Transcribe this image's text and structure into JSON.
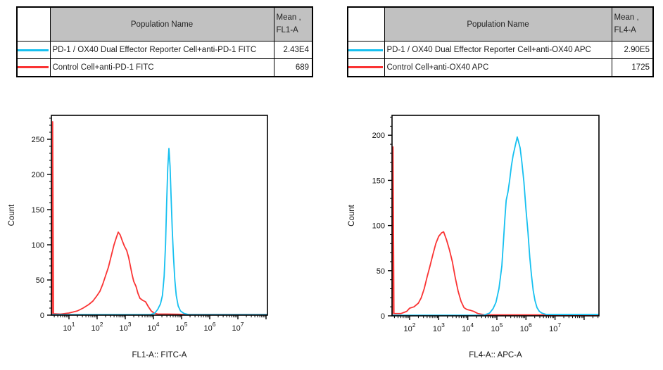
{
  "colors": {
    "cyan_series": "#16C0F0",
    "red_series": "#FA3434",
    "table_header_bg": "#C1C1C1",
    "axis_color": "#000000"
  },
  "tables": [
    {
      "id": "fl1",
      "header": {
        "population": "Population Name",
        "mean_line1": "Mean ,",
        "mean_line2": "FL1-A"
      },
      "rows": [
        {
          "color": "#16C0F0",
          "name": "PD-1 / OX40 Dual Effector Reporter Cell+anti-PD-1 FITC",
          "mean": "2.43E4"
        },
        {
          "color": "#FA3434",
          "name": "Control Cell+anti-PD-1 FITC",
          "mean": "689"
        }
      ]
    },
    {
      "id": "fl4",
      "header": {
        "population": "Population Name",
        "mean_line1": "Mean ,",
        "mean_line2": "FL4-A"
      },
      "rows": [
        {
          "color": "#16C0F0",
          "name": "PD-1 / OX40 Dual Effector Reporter Cell+anti-OX40 APC",
          "mean": "2.90E5"
        },
        {
          "color": "#FA3434",
          "name": "Control Cell+anti-OX40 APC",
          "mean": "1725"
        }
      ]
    }
  ],
  "chart_data": [
    {
      "type": "line",
      "id": "fl1",
      "title": "",
      "xlabel": "FL1-A:: FITC-A",
      "ylabel": "Count",
      "x_scale": "log",
      "xtick_base": "10",
      "xtick_decades": [
        1,
        2,
        3,
        4,
        5,
        6,
        7
      ],
      "xlim_log": [
        0.375,
        8.05
      ],
      "ylim": [
        0,
        284
      ],
      "yticks": [
        0,
        50,
        100,
        150,
        200,
        250
      ],
      "y_major_step": 50,
      "y_minor_step": 10,
      "grid": false,
      "legend_position": "none",
      "series": [
        {
          "name": "Control Cell+anti-PD-1 FITC",
          "color": "#FA3434",
          "points": [
            [
              0.4,
              1
            ],
            [
              0.42,
              275
            ],
            [
              0.45,
              2
            ],
            [
              0.7,
              1.5
            ],
            [
              1.0,
              3
            ],
            [
              1.3,
              6
            ],
            [
              1.5,
              10
            ],
            [
              1.7,
              15
            ],
            [
              1.85,
              20
            ],
            [
              2.0,
              28
            ],
            [
              2.1,
              34
            ],
            [
              2.2,
              44
            ],
            [
              2.3,
              56
            ],
            [
              2.4,
              68
            ],
            [
              2.5,
              84
            ],
            [
              2.6,
              100
            ],
            [
              2.68,
              110
            ],
            [
              2.75,
              118
            ],
            [
              2.82,
              114
            ],
            [
              2.9,
              105
            ],
            [
              2.97,
              98
            ],
            [
              3.05,
              92
            ],
            [
              3.12,
              82
            ],
            [
              3.18,
              70
            ],
            [
              3.24,
              58
            ],
            [
              3.3,
              48
            ],
            [
              3.38,
              41
            ],
            [
              3.45,
              31
            ],
            [
              3.52,
              24
            ],
            [
              3.62,
              21
            ],
            [
              3.72,
              19
            ],
            [
              3.82,
              12
            ],
            [
              3.92,
              6
            ],
            [
              4.02,
              3
            ],
            [
              4.15,
              1.5
            ],
            [
              4.5,
              1.5
            ],
            [
              4.9,
              1.2
            ],
            [
              5.1,
              0.8
            ],
            [
              8.05,
              0.8
            ]
          ]
        },
        {
          "name": "PD-1 / OX40 Dual Effector Reporter Cell+anti-PD-1 FITC",
          "color": "#16C0F0",
          "points": [
            [
              0.375,
              0.7
            ],
            [
              3.9,
              0.7
            ],
            [
              4.05,
              3
            ],
            [
              4.15,
              8
            ],
            [
              4.25,
              16
            ],
            [
              4.32,
              28
            ],
            [
              4.38,
              55
            ],
            [
              4.43,
              100
            ],
            [
              4.47,
              160
            ],
            [
              4.51,
              210
            ],
            [
              4.55,
              237
            ],
            [
              4.59,
              212
            ],
            [
              4.63,
              165
            ],
            [
              4.67,
              120
            ],
            [
              4.71,
              85
            ],
            [
              4.76,
              50
            ],
            [
              4.81,
              28
            ],
            [
              4.88,
              13
            ],
            [
              4.96,
              6
            ],
            [
              5.08,
              2.5
            ],
            [
              5.25,
              0.7
            ],
            [
              8.05,
              0.7
            ]
          ]
        }
      ]
    },
    {
      "type": "line",
      "id": "fl4",
      "title": "",
      "xlabel": "FL4-A:: APC-A",
      "ylabel": "Count",
      "x_scale": "log",
      "xtick_base": "10",
      "xtick_decades": [
        2,
        3,
        4,
        5,
        6,
        7
      ],
      "xlim_log": [
        1.395,
        8.51
      ],
      "ylim": [
        0,
        222
      ],
      "yticks": [
        0,
        50,
        100,
        150,
        200
      ],
      "y_major_step": 50,
      "y_minor_step": 10,
      "grid": false,
      "legend_position": "none",
      "series": [
        {
          "name": "Control Cell+anti-OX40 APC",
          "color": "#FA3434",
          "points": [
            [
              1.41,
              1
            ],
            [
              1.43,
              187
            ],
            [
              1.46,
              2.5
            ],
            [
              1.7,
              2.5
            ],
            [
              1.9,
              5
            ],
            [
              2.0,
              8.5
            ],
            [
              2.15,
              10
            ],
            [
              2.3,
              14
            ],
            [
              2.4,
              20
            ],
            [
              2.5,
              30
            ],
            [
              2.6,
              43
            ],
            [
              2.7,
              55
            ],
            [
              2.8,
              68
            ],
            [
              2.9,
              80
            ],
            [
              3.0,
              88
            ],
            [
              3.1,
              92
            ],
            [
              3.17,
              93
            ],
            [
              3.27,
              84
            ],
            [
              3.37,
              73
            ],
            [
              3.47,
              60
            ],
            [
              3.57,
              42
            ],
            [
              3.67,
              27
            ],
            [
              3.77,
              16
            ],
            [
              3.87,
              9
            ],
            [
              3.97,
              7
            ],
            [
              4.1,
              6
            ],
            [
              4.2,
              5
            ],
            [
              4.35,
              2.5
            ],
            [
              4.6,
              1
            ],
            [
              8.51,
              1
            ]
          ]
        },
        {
          "name": "PD-1 / OX40 Dual Effector Reporter Cell+anti-OX40 APC",
          "color": "#16C0F0",
          "points": [
            [
              1.395,
              0.7
            ],
            [
              4.55,
              0.7
            ],
            [
              4.75,
              3
            ],
            [
              4.87,
              8
            ],
            [
              4.97,
              15
            ],
            [
              5.07,
              30
            ],
            [
              5.17,
              55
            ],
            [
              5.22,
              80
            ],
            [
              5.27,
              105
            ],
            [
              5.32,
              128
            ],
            [
              5.38,
              137
            ],
            [
              5.44,
              150
            ],
            [
              5.5,
              166
            ],
            [
              5.56,
              178
            ],
            [
              5.63,
              188
            ],
            [
              5.7,
              198
            ],
            [
              5.75,
              192
            ],
            [
              5.8,
              186
            ],
            [
              5.86,
              170
            ],
            [
              5.93,
              148
            ],
            [
              6.0,
              118
            ],
            [
              6.07,
              92
            ],
            [
              6.13,
              65
            ],
            [
              6.19,
              45
            ],
            [
              6.25,
              28
            ],
            [
              6.31,
              17
            ],
            [
              6.38,
              9
            ],
            [
              6.46,
              5
            ],
            [
              6.55,
              3
            ],
            [
              6.7,
              1.5
            ],
            [
              8.51,
              1.5
            ]
          ]
        }
      ]
    }
  ]
}
